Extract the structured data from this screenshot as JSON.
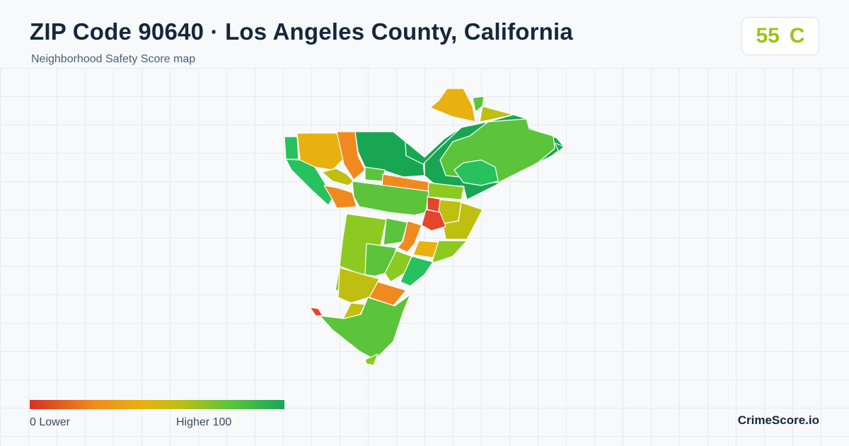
{
  "header": {
    "title": "ZIP Code 90640 · Los Angeles County, California",
    "subtitle": "Neighborhood Safety Score map"
  },
  "score": {
    "value": "55",
    "grade": "C",
    "color": "#9bc413"
  },
  "legend": {
    "low_label": "0  Lower",
    "high_label": "Higher  100",
    "gradient_colors": [
      "#d73027",
      "#f08a1f",
      "#e8b10f",
      "#b8c012",
      "#5dc43a",
      "#1aa55a"
    ]
  },
  "brand": "CrimeScore.io",
  "palette": {
    "red": "#e5452a",
    "orange": "#f08a1f",
    "amber": "#e8b10f",
    "olive": "#bfbf12",
    "lime": "#8cca22",
    "green": "#5bc43a",
    "mid_green": "#27c15e",
    "dark_green": "#18a653"
  },
  "map": {
    "regions": [
      {
        "name": "north-peak",
        "color": "amber"
      },
      {
        "name": "north-peak-strip",
        "color": "green"
      },
      {
        "name": "north-ridge",
        "color": "olive"
      },
      {
        "name": "northeast-green",
        "color": "dark_green"
      },
      {
        "name": "east-hills",
        "color": "green"
      },
      {
        "name": "east-park",
        "color": "mid_green"
      },
      {
        "name": "east-tip",
        "color": "dark_green"
      },
      {
        "name": "nw-edge",
        "color": "mid_green"
      },
      {
        "name": "nw-block-a",
        "color": "amber"
      },
      {
        "name": "nw-block-b",
        "color": "orange"
      },
      {
        "name": "north-central",
        "color": "dark_green"
      },
      {
        "name": "north-green-wedge",
        "color": "dark_green"
      },
      {
        "name": "west-lower",
        "color": "mid_green"
      },
      {
        "name": "west-strip",
        "color": "olive"
      },
      {
        "name": "west-orange",
        "color": "orange"
      },
      {
        "name": "center-green",
        "color": "green"
      },
      {
        "name": "center-band-orange",
        "color": "orange"
      },
      {
        "name": "center-right-lime",
        "color": "lime"
      },
      {
        "name": "center-mid-green",
        "color": "green"
      },
      {
        "name": "center-red",
        "color": "red"
      },
      {
        "name": "center-olive",
        "color": "olive"
      },
      {
        "name": "center-east-olive",
        "color": "olive"
      },
      {
        "name": "south-orange-block",
        "color": "red"
      },
      {
        "name": "mid-lime-west",
        "color": "lime"
      },
      {
        "name": "mid-green",
        "color": "green"
      },
      {
        "name": "mid-orange",
        "color": "orange"
      },
      {
        "name": "mid-amber",
        "color": "amber"
      },
      {
        "name": "mid-lime-east",
        "color": "lime"
      },
      {
        "name": "south-lime-west",
        "color": "lime"
      },
      {
        "name": "south-green",
        "color": "green"
      },
      {
        "name": "south-lime",
        "color": "lime"
      },
      {
        "name": "south-teal",
        "color": "mid_green"
      },
      {
        "name": "south-olive",
        "color": "olive"
      },
      {
        "name": "south-orange",
        "color": "orange"
      },
      {
        "name": "south-small-olive",
        "color": "olive"
      },
      {
        "name": "far-south-green",
        "color": "green"
      },
      {
        "name": "sw-red-sliver",
        "color": "red"
      },
      {
        "name": "south-tail",
        "color": "lime"
      }
    ]
  }
}
